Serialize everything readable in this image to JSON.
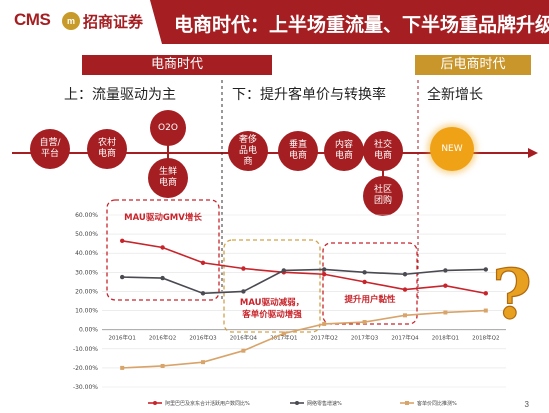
{
  "header": {
    "logo_text": "CMS",
    "logo_badge": "m",
    "logo_name": "招商证券",
    "title": "电商时代：上半场重流量、下半场重品牌升级"
  },
  "eras": [
    {
      "label": "电商时代"
    },
    {
      "label": "后电商时代"
    }
  ],
  "phases": [
    {
      "label": "上：流量驱动为主"
    },
    {
      "label": "下：提升客单价与转换率"
    },
    {
      "label": "全新增长"
    }
  ],
  "bubbles": [
    {
      "label": "自营/\n平台"
    },
    {
      "label": "农村\n电商"
    },
    {
      "label": "O2O"
    },
    {
      "label": "生鲜\n电商"
    },
    {
      "label": "奢侈\n品电\n商"
    },
    {
      "label": "垂直\n电商"
    },
    {
      "label": "内容\n电商"
    },
    {
      "label": "社交\n电商"
    },
    {
      "label": "社区\n团购"
    },
    {
      "label": "NEW"
    }
  ],
  "colors": {
    "brand_red": "#a41e22",
    "gold": "#c9962c",
    "series1": "#c8242b",
    "series2": "#4a4a52",
    "series3": "#d8a46a",
    "question": "#e8a020"
  },
  "decor": {
    "question_mark": "?"
  },
  "chart_data": {
    "type": "line",
    "categories": [
      "2016年Q1",
      "2016年Q2",
      "2016年Q3",
      "2016年Q4",
      "2017年Q1",
      "2017年Q2",
      "2017年Q3",
      "2017年Q4",
      "2018年Q1",
      "2018年Q2"
    ],
    "ylim": [
      -30,
      60
    ],
    "yticks": [
      "-30.00%",
      "-20.00%",
      "-10.00%",
      "0.00%",
      "10.00%",
      "20.00%",
      "30.00%",
      "40.00%",
      "50.00%",
      "60.00%"
    ],
    "series": [
      {
        "name": "阿里巴巴及京东合计活跃用户数同比%",
        "values": [
          46.5,
          43,
          35,
          32,
          30,
          29,
          25,
          21,
          23,
          19
        ]
      },
      {
        "name": "网络零售增速%",
        "values": [
          27.5,
          27,
          19,
          20,
          31,
          31.5,
          30,
          29,
          31,
          31.5
        ]
      },
      {
        "name": "客单价同比推测%",
        "values": [
          -20,
          -19,
          -17,
          -11,
          -2,
          3,
          4,
          7.5,
          9,
          10
        ]
      }
    ],
    "annotations": [
      {
        "text": "MAU驱动GMV增长"
      },
      {
        "text": "MAU驱动减弱，\n客单价驱动增强"
      },
      {
        "text": "提升用户黏性"
      }
    ],
    "grid": true,
    "legend": "bottom"
  },
  "page_number": "3"
}
